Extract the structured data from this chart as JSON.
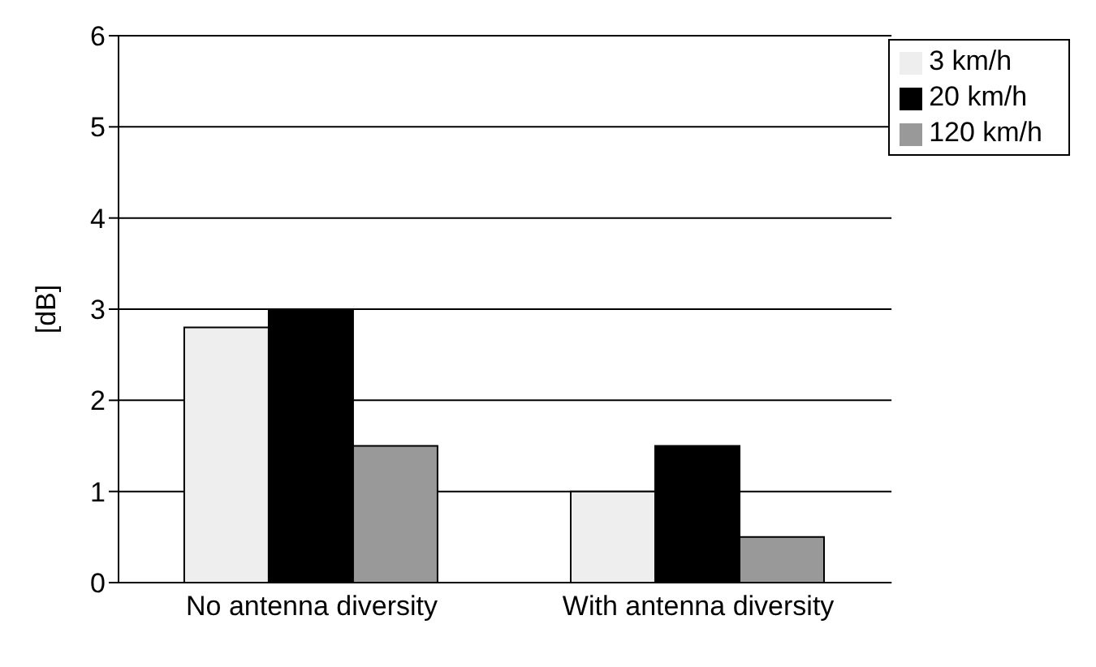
{
  "chart_data": {
    "type": "bar",
    "ylabel": "[dB]",
    "categories": [
      "No antenna diversity",
      "With antenna diversity"
    ],
    "series": [
      {
        "name": "3 km/h",
        "color": "#eeeeee",
        "values": [
          2.8,
          1.0
        ]
      },
      {
        "name": "20 km/h",
        "color": "#000000",
        "values": [
          3.0,
          1.5
        ]
      },
      {
        "name": "120 km/h",
        "color": "#999999",
        "values": [
          1.5,
          0.5
        ]
      }
    ],
    "ylim": [
      0,
      6
    ],
    "yticks": [
      0,
      1,
      2,
      3,
      4,
      5,
      6
    ],
    "grid": "y",
    "legend": "top right"
  }
}
